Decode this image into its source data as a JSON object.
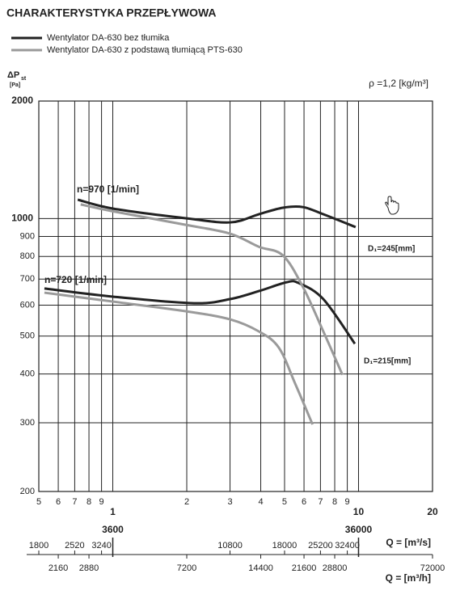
{
  "chart_data": {
    "type": "line",
    "title": "CHARAKTERYSTYKA PRZEPŁYWOWA",
    "ylabel": "ΔP",
    "ylabel_sub": "st",
    "yunit": "[Pa]",
    "density": "ρ =1,2 [kg/m³]",
    "xlabel": "Q = [m³/s]",
    "x2label": "Q = [m³/h]",
    "log_x": true,
    "log_y": true,
    "grid": true,
    "xlim": [
      0.5,
      20
    ],
    "xticks": [
      {
        "value": 0.5,
        "label": "5"
      },
      {
        "value": 0.6,
        "label": "6"
      },
      {
        "value": 0.7,
        "label": "7"
      },
      {
        "value": 0.8,
        "label": "8"
      },
      {
        "value": 0.9,
        "label": "9"
      },
      1,
      2,
      3,
      4,
      5,
      6,
      7,
      8,
      9,
      10,
      20
    ],
    "ylim": [
      200,
      2000
    ],
    "yticks": [
      200,
      300,
      400,
      500,
      600,
      700,
      800,
      900,
      1000,
      2000
    ],
    "x2lim": [
      1800,
      72000
    ],
    "x2ticks_major": [
      3600,
      36000
    ],
    "x2ticks_upper": [
      1800,
      2520,
      3240,
      10800,
      18000,
      25200,
      32400
    ],
    "x2ticks_lower": [
      2160,
      2880,
      7200,
      14400,
      21600,
      28800,
      72000
    ],
    "annotations": [
      "n=970 [1/min]",
      "n=720 [1/min]",
      "D₁=245[mm]",
      "D₁=215[mm]"
    ],
    "series": [
      {
        "name": "Wentylator DA-630 bez tłumika",
        "color": "#222222",
        "curves": [
          {
            "x": [
              0.72,
              1.0,
              1.98,
              3.01,
              3.93,
              4.92,
              5.94,
              7.19,
              9.73
            ],
            "values": [
              1118,
              1061,
              1002,
              978,
              1026,
              1066,
              1070,
              1026,
              951
            ]
          },
          {
            "x": [
              0.527,
              1.0,
              2.14,
              3.0,
              3.93,
              5.1,
              5.7,
              7.19,
              9.66
            ],
            "values": [
              662,
              631,
              607,
              622,
              652,
              687,
              684,
              622,
              478
            ]
          }
        ]
      },
      {
        "name": "Wentylator DA-630 z podstawą tłumiącą  PTS-630",
        "color": "#9a9a9a",
        "curves": [
          {
            "x": [
              0.74,
              1.0,
              1.98,
              3.0,
              3.93,
              4.92,
              5.94,
              7.19,
              8.6
            ],
            "values": [
              1087,
              1044,
              964,
              915,
              847,
              805,
              668,
              514,
              398
            ]
          },
          {
            "x": [
              0.527,
              1.0,
              1.98,
              3.0,
              3.93,
              4.74,
              5.53,
              6.5
            ],
            "values": [
              646,
              613,
              579,
              552,
              514,
              467,
              377,
              297
            ]
          }
        ]
      }
    ]
  }
}
